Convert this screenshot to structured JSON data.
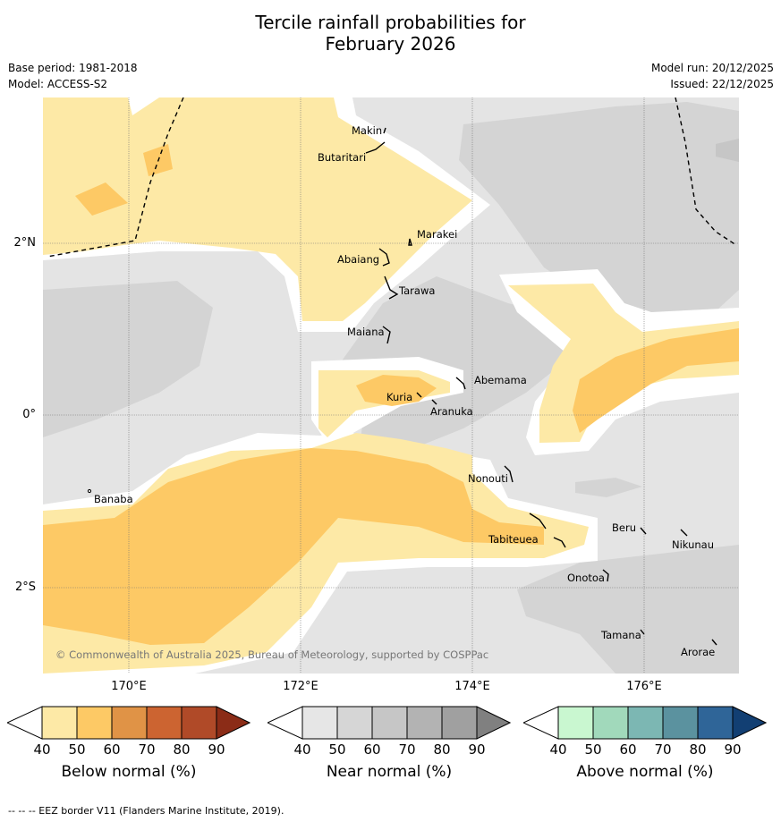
{
  "title_line1": "Tercile rainfall probabilities for",
  "title_line2": "February 2026",
  "base_period": "Base period: 1981-2018",
  "model": "Model: ACCESS-S2",
  "model_run": "Model run: 20/12/2025",
  "issued": "Issued: 22/12/2025",
  "lat_labels": [
    "2°N",
    "0°",
    "2°S"
  ],
  "lon_labels": [
    "170°E",
    "172°E",
    "174°E",
    "176°E"
  ],
  "places": {
    "makin": "Makin",
    "butaritari": "Butaritari",
    "marakei": "Marakei",
    "abaiang": "Abaiang",
    "tarawa": "Tarawa",
    "maiana": "Maiana",
    "abemama": "Abemama",
    "kuria": "Kuria",
    "aranuka": "Aranuka",
    "nonouti": "Nonouti",
    "banaba": "Banaba",
    "beru": "Beru",
    "nikunau": "Nikunau",
    "tabiteuea": "Tabiteuea",
    "onotoa": "Onotoa",
    "tamana": "Tamana",
    "arorae": "Arorae"
  },
  "copyright": "© Commonwealth of Australia 2025, Bureau of Meteorology, supported by COSPPac",
  "colorbars": [
    {
      "label": "Below normal (%)",
      "ticks": [
        "40",
        "50",
        "60",
        "70",
        "80",
        "90"
      ],
      "colors": [
        "#fde9a6",
        "#fdc965",
        "#e09346",
        "#cc6431",
        "#b04a28",
        "#8b2c17"
      ]
    },
    {
      "label": "Near normal (%)",
      "ticks": [
        "40",
        "50",
        "60",
        "70",
        "80",
        "90"
      ],
      "colors": [
        "#e6e6e6",
        "#d6d6d6",
        "#c6c6c6",
        "#b3b3b3",
        "#a0a0a0",
        "#808080"
      ]
    },
    {
      "label": "Above normal (%)",
      "ticks": [
        "40",
        "50",
        "60",
        "70",
        "80",
        "90"
      ],
      "colors": [
        "#c9f7d0",
        "#a1d9bb",
        "#7cb7b3",
        "#5b929f",
        "#2f6598",
        "#123f73"
      ]
    }
  ],
  "eez_note": "--  --  -- EEZ border V11 (Flanders Marine Institute, 2019)."
}
